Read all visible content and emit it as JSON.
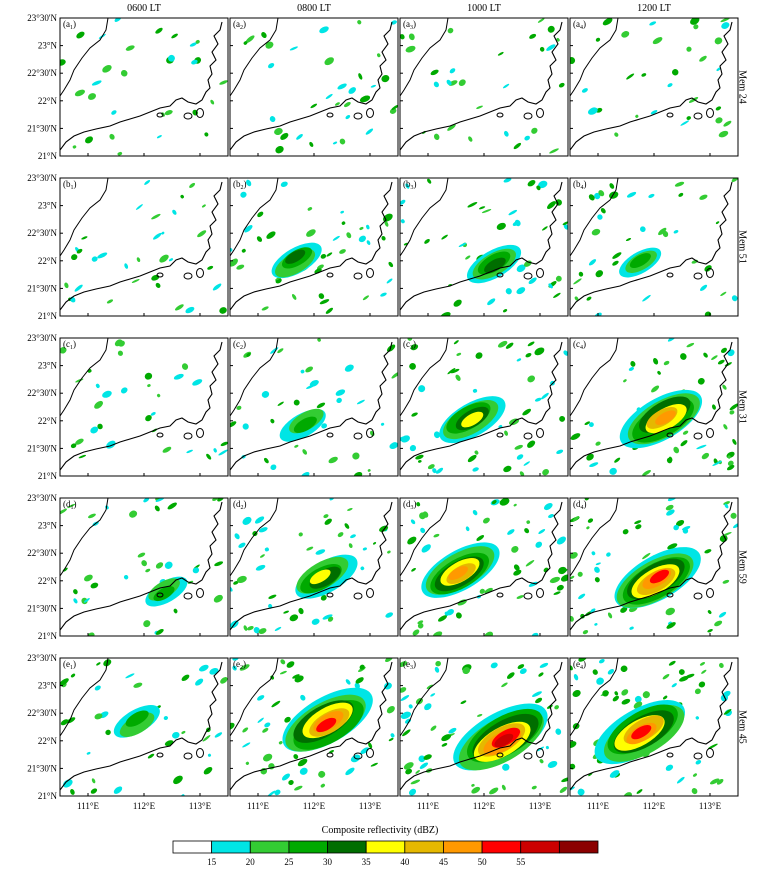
{
  "columns": [
    "0600 LT",
    "0800 LT",
    "1000 LT",
    "1200 LT"
  ],
  "rows": [
    "Mem 24",
    "Mem 51",
    "Mem 31",
    "Mem 59",
    "Mem 45"
  ],
  "row_letters": [
    "a",
    "b",
    "c",
    "d",
    "e"
  ],
  "col_indices": [
    "1",
    "2",
    "3",
    "4"
  ],
  "lat_labels": [
    "23°30'N",
    "23°N",
    "22°30'N",
    "22°N",
    "21°30'N",
    "21°N"
  ],
  "lon_labels": [
    "111°E",
    "112°E",
    "113°E"
  ],
  "colorbar": {
    "title": "Composite reflectivity (dBZ)",
    "ticks": [
      "15",
      "20",
      "25",
      "30",
      "35",
      "40",
      "45",
      "50",
      "55"
    ],
    "colors": [
      "#ffffff",
      "#00e5e5",
      "#33cc33",
      "#00aa00",
      "#006e00",
      "#ffff00",
      "#e5b800",
      "#ff9900",
      "#ff0000",
      "#cc0000",
      "#8b0000"
    ]
  },
  "storm_intensity": [
    [
      0.12,
      0.2,
      0.1,
      0.15
    ],
    [
      0.2,
      0.4,
      0.45,
      0.3
    ],
    [
      0.15,
      0.35,
      0.6,
      0.8
    ],
    [
      0.3,
      0.55,
      0.75,
      0.85
    ],
    [
      0.35,
      0.9,
      0.95,
      0.9
    ]
  ]
}
